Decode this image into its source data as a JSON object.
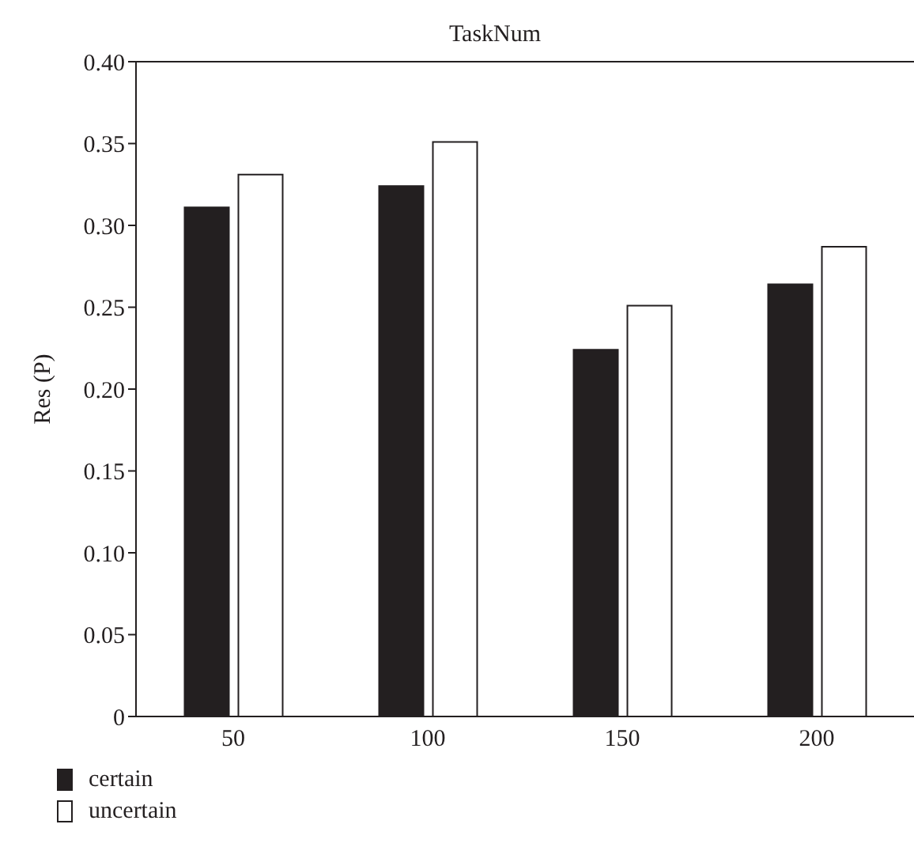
{
  "chart_data": {
    "type": "bar",
    "title": "TaskNum",
    "ylabel": "Res (P)",
    "categories": [
      "50",
      "100",
      "150",
      "200"
    ],
    "series": [
      {
        "name": "certain",
        "color": "#231f20",
        "values": [
          0.311,
          0.324,
          0.224,
          0.264
        ]
      },
      {
        "name": "uncertain",
        "color": "#ffffff",
        "values": [
          0.331,
          0.351,
          0.251,
          0.287
        ]
      }
    ],
    "ylim": [
      0,
      0.4
    ],
    "yticks": [
      {
        "value": 0,
        "label": "0"
      },
      {
        "value": 0.05,
        "label": "0.05"
      },
      {
        "value": 0.1,
        "label": "0.10"
      },
      {
        "value": 0.15,
        "label": "0.15"
      },
      {
        "value": 0.2,
        "label": "0.20"
      },
      {
        "value": 0.25,
        "label": "0.25"
      },
      {
        "value": 0.3,
        "label": "0.30"
      },
      {
        "value": 0.35,
        "label": "0.35"
      },
      {
        "value": 0.4,
        "label": "0.40"
      }
    ],
    "grid": false,
    "legend": "bottom left"
  }
}
